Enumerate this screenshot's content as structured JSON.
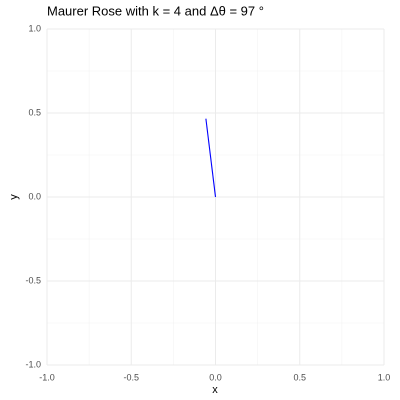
{
  "chart_data": {
    "type": "line",
    "title": "Maurer Rose with k = 4 and Δθ = 97 °",
    "xlabel": "x",
    "ylabel": "y",
    "x": [
      0,
      -0.057
    ],
    "series": [
      {
        "color": "#0000ff",
        "values": [
          0,
          0.466
        ]
      }
    ],
    "xlim": [
      -1,
      1
    ],
    "ylim": [
      -1,
      1
    ],
    "xticks": [
      {
        "value": -1,
        "label": "-1.0"
      },
      {
        "value": -0.5,
        "label": "-0.5"
      },
      {
        "value": 0,
        "label": "0.0"
      },
      {
        "value": 0.5,
        "label": "0.5"
      },
      {
        "value": 1,
        "label": "1.0"
      }
    ],
    "yticks": [
      {
        "value": -1,
        "label": "-1.0"
      },
      {
        "value": -0.5,
        "label": "-0.5"
      },
      {
        "value": 0,
        "label": "0.0"
      },
      {
        "value": 0.5,
        "label": "0.5"
      },
      {
        "value": 1,
        "label": "1.0"
      }
    ],
    "x_minor_ticks": [
      -0.75,
      -0.25,
      0.25,
      0.75
    ],
    "y_minor_ticks": [
      -0.75,
      -0.25,
      0.25,
      0.75
    ],
    "grid": true
  }
}
